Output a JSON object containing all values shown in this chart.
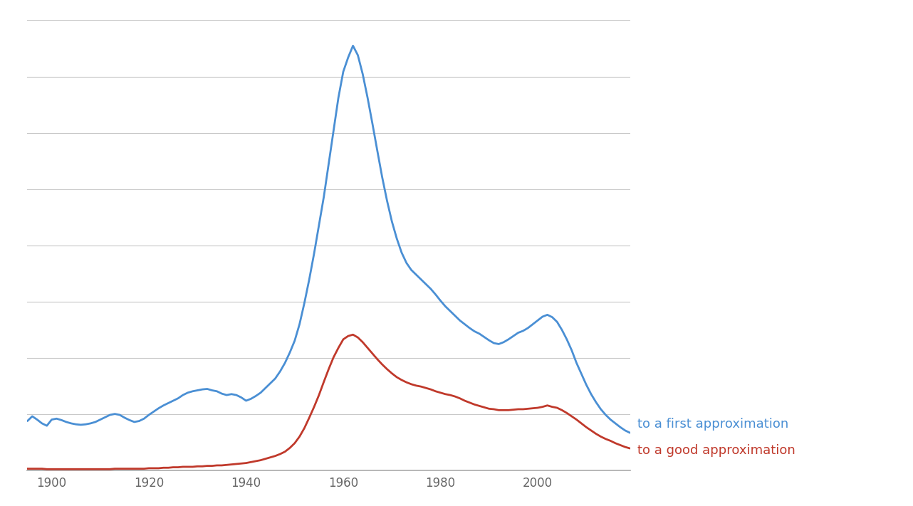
{
  "background_color": "#ffffff",
  "grid_color": "#c8c8c8",
  "axis_color": "#aaaaaa",
  "xlim": [
    1895,
    2019
  ],
  "tick_color": "#666666",
  "line1_color": "#4a8fd4",
  "line2_color": "#c0392b",
  "line1_label": "to a first approximation",
  "line2_label": "to a good approximation",
  "label_fontsize": 13,
  "tick_fontsize": 12,
  "xlabel_ticks": [
    1900,
    1920,
    1940,
    1960,
    1980,
    2000
  ],
  "years": [
    1895,
    1896,
    1897,
    1898,
    1899,
    1900,
    1901,
    1902,
    1903,
    1904,
    1905,
    1906,
    1907,
    1908,
    1909,
    1910,
    1911,
    1912,
    1913,
    1914,
    1915,
    1916,
    1917,
    1918,
    1919,
    1920,
    1921,
    1922,
    1923,
    1924,
    1925,
    1926,
    1927,
    1928,
    1929,
    1930,
    1931,
    1932,
    1933,
    1934,
    1935,
    1936,
    1937,
    1938,
    1939,
    1940,
    1941,
    1942,
    1943,
    1944,
    1945,
    1946,
    1947,
    1948,
    1949,
    1950,
    1951,
    1952,
    1953,
    1954,
    1955,
    1956,
    1957,
    1958,
    1959,
    1960,
    1961,
    1962,
    1963,
    1964,
    1965,
    1966,
    1967,
    1968,
    1969,
    1970,
    1971,
    1972,
    1973,
    1974,
    1975,
    1976,
    1977,
    1978,
    1979,
    1980,
    1981,
    1982,
    1983,
    1984,
    1985,
    1986,
    1987,
    1988,
    1989,
    1990,
    1991,
    1992,
    1993,
    1994,
    1995,
    1996,
    1997,
    1998,
    1999,
    2000,
    2001,
    2002,
    2003,
    2004,
    2005,
    2006,
    2007,
    2008,
    2009,
    2010,
    2011,
    2012,
    2013,
    2014,
    2015,
    2016,
    2017,
    2018,
    2019
  ],
  "first_approx": [
    0.105,
    0.115,
    0.108,
    0.1,
    0.095,
    0.108,
    0.11,
    0.107,
    0.103,
    0.1,
    0.098,
    0.097,
    0.098,
    0.1,
    0.103,
    0.108,
    0.113,
    0.118,
    0.12,
    0.118,
    0.112,
    0.107,
    0.103,
    0.105,
    0.11,
    0.118,
    0.125,
    0.132,
    0.138,
    0.143,
    0.148,
    0.153,
    0.16,
    0.165,
    0.168,
    0.17,
    0.172,
    0.173,
    0.17,
    0.168,
    0.163,
    0.16,
    0.162,
    0.16,
    0.155,
    0.148,
    0.152,
    0.158,
    0.165,
    0.175,
    0.185,
    0.195,
    0.21,
    0.228,
    0.25,
    0.275,
    0.31,
    0.355,
    0.405,
    0.46,
    0.52,
    0.58,
    0.65,
    0.72,
    0.79,
    0.845,
    0.875,
    0.9,
    0.88,
    0.84,
    0.79,
    0.735,
    0.678,
    0.622,
    0.572,
    0.528,
    0.492,
    0.462,
    0.44,
    0.425,
    0.415,
    0.405,
    0.395,
    0.385,
    0.373,
    0.36,
    0.348,
    0.338,
    0.328,
    0.318,
    0.31,
    0.302,
    0.295,
    0.29,
    0.283,
    0.276,
    0.27,
    0.268,
    0.272,
    0.278,
    0.285,
    0.292,
    0.296,
    0.302,
    0.31,
    0.318,
    0.326,
    0.33,
    0.325,
    0.315,
    0.298,
    0.278,
    0.255,
    0.228,
    0.205,
    0.182,
    0.162,
    0.145,
    0.13,
    0.118,
    0.108,
    0.1,
    0.092,
    0.085,
    0.08
  ],
  "good_approx": [
    0.004,
    0.004,
    0.004,
    0.004,
    0.003,
    0.003,
    0.003,
    0.003,
    0.003,
    0.003,
    0.003,
    0.003,
    0.003,
    0.003,
    0.003,
    0.003,
    0.003,
    0.003,
    0.004,
    0.004,
    0.004,
    0.004,
    0.004,
    0.004,
    0.004,
    0.005,
    0.005,
    0.005,
    0.006,
    0.006,
    0.007,
    0.007,
    0.008,
    0.008,
    0.008,
    0.009,
    0.009,
    0.01,
    0.01,
    0.011,
    0.011,
    0.012,
    0.013,
    0.014,
    0.015,
    0.016,
    0.018,
    0.02,
    0.022,
    0.025,
    0.028,
    0.031,
    0.035,
    0.04,
    0.048,
    0.058,
    0.072,
    0.09,
    0.112,
    0.135,
    0.16,
    0.188,
    0.215,
    0.24,
    0.26,
    0.278,
    0.285,
    0.288,
    0.282,
    0.272,
    0.26,
    0.248,
    0.236,
    0.225,
    0.215,
    0.206,
    0.198,
    0.192,
    0.187,
    0.183,
    0.18,
    0.178,
    0.175,
    0.172,
    0.168,
    0.165,
    0.162,
    0.16,
    0.157,
    0.153,
    0.148,
    0.144,
    0.14,
    0.137,
    0.134,
    0.131,
    0.13,
    0.128,
    0.128,
    0.128,
    0.129,
    0.13,
    0.13,
    0.131,
    0.132,
    0.133,
    0.135,
    0.138,
    0.135,
    0.133,
    0.128,
    0.122,
    0.115,
    0.108,
    0.1,
    0.092,
    0.085,
    0.078,
    0.072,
    0.067,
    0.063,
    0.058,
    0.054,
    0.05,
    0.047
  ],
  "num_gridlines": 8,
  "line_width": 2.0
}
